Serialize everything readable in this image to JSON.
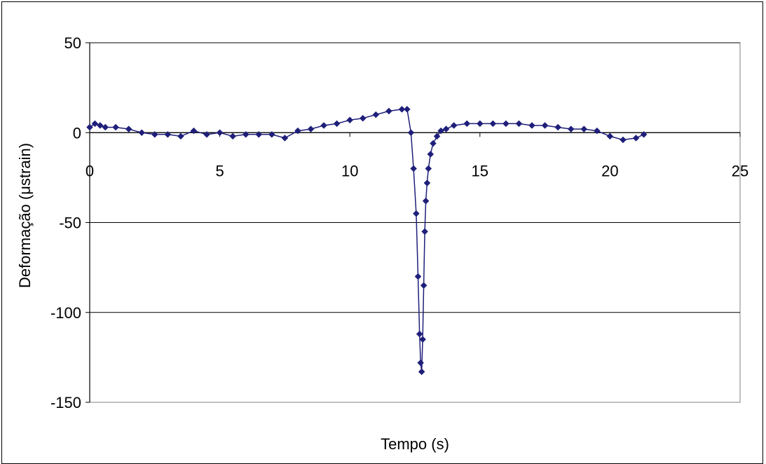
{
  "chart_data": {
    "type": "line",
    "xlabel": "Tempo (s)",
    "ylabel": "Deformação (μstrain)",
    "xlim": [
      0,
      25
    ],
    "ylim": [
      -150,
      50
    ],
    "xticks": [
      0,
      5,
      10,
      15,
      20,
      25
    ],
    "yticks": [
      50,
      0,
      -50,
      -100,
      -150
    ],
    "x_tick_labels": [
      "0",
      "5",
      "10",
      "15",
      "20",
      "25"
    ],
    "y_tick_labels": [
      "50",
      "0",
      "-50",
      "-100",
      "-150"
    ],
    "grid": "horizontal",
    "legend": "none",
    "marker": "diamond",
    "series": [
      {
        "color": "#1f1f7a",
        "x": [
          0,
          0.2,
          0.4,
          0.6,
          1.0,
          1.5,
          2.0,
          2.5,
          3.0,
          3.5,
          4.0,
          4.5,
          5.0,
          5.5,
          6.0,
          6.5,
          7.0,
          7.5,
          8.0,
          8.5,
          9.0,
          9.5,
          10.0,
          10.5,
          11.0,
          11.5,
          12.0,
          12.2,
          12.35,
          12.45,
          12.55,
          12.62,
          12.68,
          12.72,
          12.76,
          12.8,
          12.84,
          12.88,
          12.92,
          12.97,
          13.02,
          13.1,
          13.2,
          13.35,
          13.5,
          13.7,
          14.0,
          14.5,
          15.0,
          15.5,
          16.0,
          16.5,
          17.0,
          17.5,
          18.0,
          18.5,
          19.0,
          19.5,
          20.0,
          20.5,
          21.0,
          21.3
        ],
        "y": [
          3,
          5,
          4,
          3,
          3,
          2,
          0,
          -1,
          -1,
          -2,
          1,
          -1,
          0,
          -2,
          -1,
          -1,
          -1,
          -3,
          1,
          2,
          4,
          5,
          7,
          8,
          10,
          12,
          13,
          13,
          0,
          -20,
          -45,
          -80,
          -112,
          -128,
          -133,
          -115,
          -85,
          -55,
          -38,
          -28,
          -20,
          -12,
          -6,
          -2,
          1,
          2,
          4,
          5,
          5,
          5,
          5,
          5,
          4,
          4,
          3,
          2,
          2,
          1,
          -2,
          -4,
          -3,
          -1
        ]
      }
    ]
  }
}
